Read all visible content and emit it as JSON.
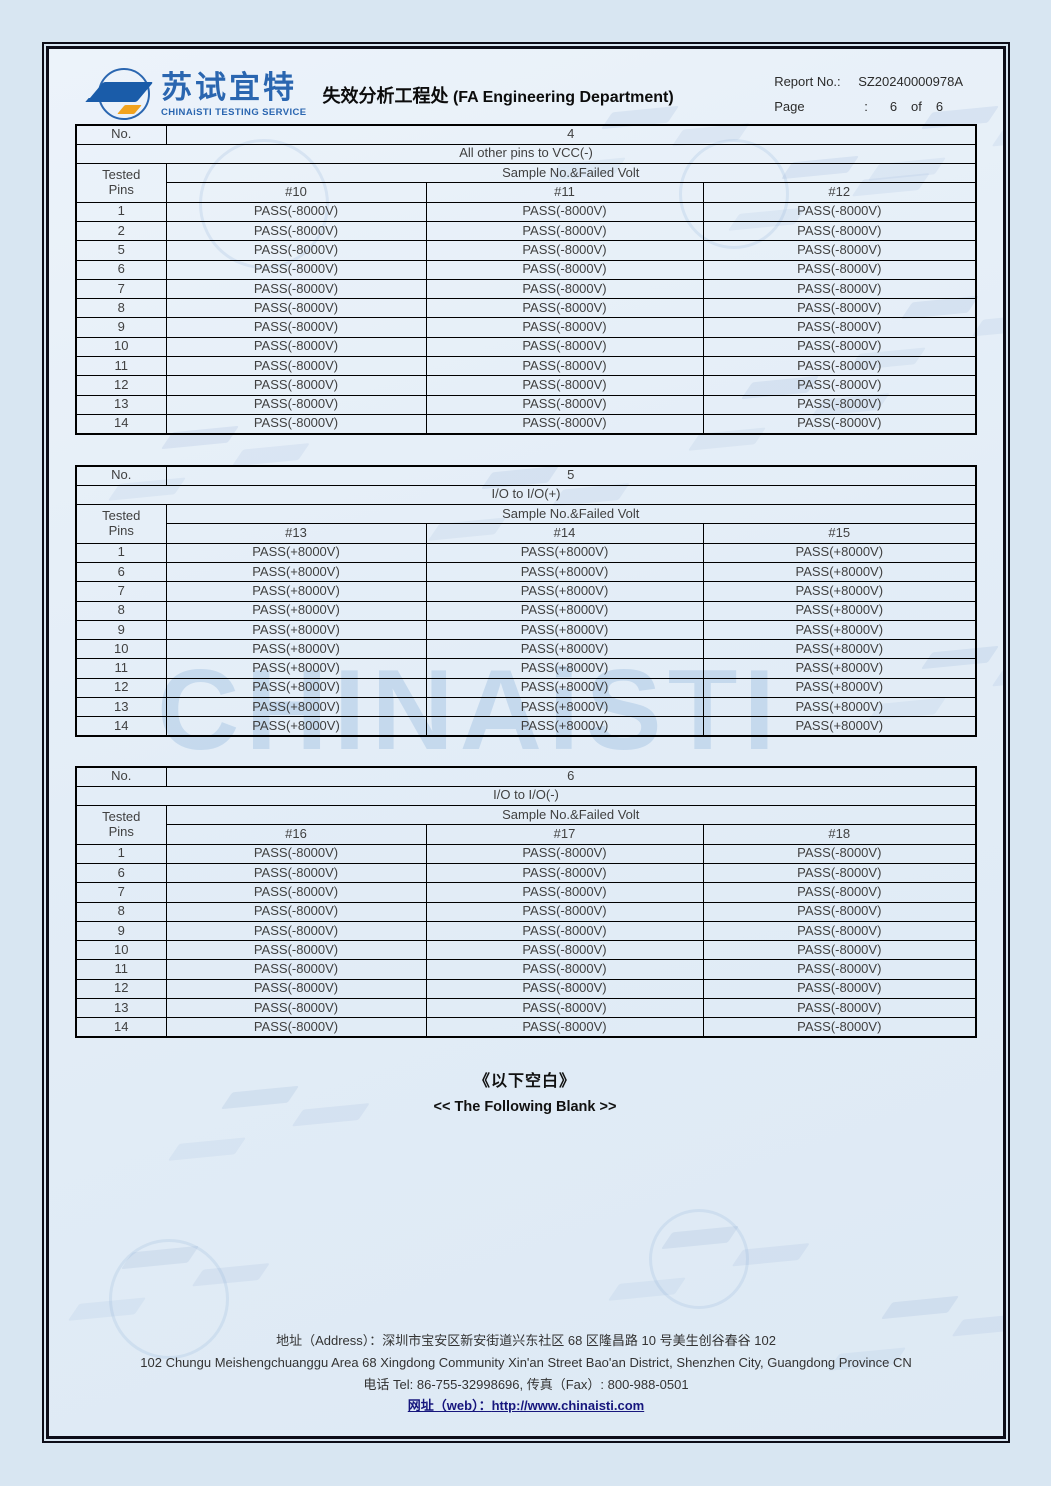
{
  "brand": {
    "logo_cn": "苏试宜特",
    "logo_en": "CHINAiSTI TESTING SERVICE",
    "dept_cn": "失效分析工程处",
    "dept_en": "(FA Engineering Department)"
  },
  "report": {
    "report_no_label": "Report No.:",
    "report_no": "SZ20240000978A",
    "page_label": "Page",
    "page_colon": ":",
    "page_no": "6",
    "of_label": "of",
    "page_total": "6"
  },
  "tables": [
    {
      "no_label": "No.",
      "no_value": "4",
      "condition": "All other pins to VCC(-)",
      "tested_pins_label": "Tested Pins",
      "sample_header": "Sample No.&Failed Volt",
      "columns": [
        "#10",
        "#11",
        "#12"
      ],
      "rows": [
        {
          "pin": "1",
          "values": [
            "PASS(-8000V)",
            "PASS(-8000V)",
            "PASS(-8000V)"
          ]
        },
        {
          "pin": "2",
          "values": [
            "PASS(-8000V)",
            "PASS(-8000V)",
            "PASS(-8000V)"
          ]
        },
        {
          "pin": "5",
          "values": [
            "PASS(-8000V)",
            "PASS(-8000V)",
            "PASS(-8000V)"
          ]
        },
        {
          "pin": "6",
          "values": [
            "PASS(-8000V)",
            "PASS(-8000V)",
            "PASS(-8000V)"
          ]
        },
        {
          "pin": "7",
          "values": [
            "PASS(-8000V)",
            "PASS(-8000V)",
            "PASS(-8000V)"
          ]
        },
        {
          "pin": "8",
          "values": [
            "PASS(-8000V)",
            "PASS(-8000V)",
            "PASS(-8000V)"
          ]
        },
        {
          "pin": "9",
          "values": [
            "PASS(-8000V)",
            "PASS(-8000V)",
            "PASS(-8000V)"
          ]
        },
        {
          "pin": "10",
          "values": [
            "PASS(-8000V)",
            "PASS(-8000V)",
            "PASS(-8000V)"
          ]
        },
        {
          "pin": "11",
          "values": [
            "PASS(-8000V)",
            "PASS(-8000V)",
            "PASS(-8000V)"
          ]
        },
        {
          "pin": "12",
          "values": [
            "PASS(-8000V)",
            "PASS(-8000V)",
            "PASS(-8000V)"
          ]
        },
        {
          "pin": "13",
          "values": [
            "PASS(-8000V)",
            "PASS(-8000V)",
            "PASS(-8000V)"
          ]
        },
        {
          "pin": "14",
          "values": [
            "PASS(-8000V)",
            "PASS(-8000V)",
            "PASS(-8000V)"
          ]
        }
      ]
    },
    {
      "no_label": "No.",
      "no_value": "5",
      "condition": "I/O to I/O(+)",
      "tested_pins_label": "Tested Pins",
      "sample_header": "Sample No.&Failed Volt",
      "columns": [
        "#13",
        "#14",
        "#15"
      ],
      "rows": [
        {
          "pin": "1",
          "values": [
            "PASS(+8000V)",
            "PASS(+8000V)",
            "PASS(+8000V)"
          ]
        },
        {
          "pin": "6",
          "values": [
            "PASS(+8000V)",
            "PASS(+8000V)",
            "PASS(+8000V)"
          ]
        },
        {
          "pin": "7",
          "values": [
            "PASS(+8000V)",
            "PASS(+8000V)",
            "PASS(+8000V)"
          ]
        },
        {
          "pin": "8",
          "values": [
            "PASS(+8000V)",
            "PASS(+8000V)",
            "PASS(+8000V)"
          ]
        },
        {
          "pin": "9",
          "values": [
            "PASS(+8000V)",
            "PASS(+8000V)",
            "PASS(+8000V)"
          ]
        },
        {
          "pin": "10",
          "values": [
            "PASS(+8000V)",
            "PASS(+8000V)",
            "PASS(+8000V)"
          ]
        },
        {
          "pin": "11",
          "values": [
            "PASS(+8000V)",
            "PASS(+8000V)",
            "PASS(+8000V)"
          ]
        },
        {
          "pin": "12",
          "values": [
            "PASS(+8000V)",
            "PASS(+8000V)",
            "PASS(+8000V)"
          ]
        },
        {
          "pin": "13",
          "values": [
            "PASS(+8000V)",
            "PASS(+8000V)",
            "PASS(+8000V)"
          ]
        },
        {
          "pin": "14",
          "values": [
            "PASS(+8000V)",
            "PASS(+8000V)",
            "PASS(+8000V)"
          ]
        }
      ]
    },
    {
      "no_label": "No.",
      "no_value": "6",
      "condition": "I/O to I/O(-)",
      "tested_pins_label": "Tested Pins",
      "sample_header": "Sample No.&Failed Volt",
      "columns": [
        "#16",
        "#17",
        "#18"
      ],
      "rows": [
        {
          "pin": "1",
          "values": [
            "PASS(-8000V)",
            "PASS(-8000V)",
            "PASS(-8000V)"
          ]
        },
        {
          "pin": "6",
          "values": [
            "PASS(-8000V)",
            "PASS(-8000V)",
            "PASS(-8000V)"
          ]
        },
        {
          "pin": "7",
          "values": [
            "PASS(-8000V)",
            "PASS(-8000V)",
            "PASS(-8000V)"
          ]
        },
        {
          "pin": "8",
          "values": [
            "PASS(-8000V)",
            "PASS(-8000V)",
            "PASS(-8000V)"
          ]
        },
        {
          "pin": "9",
          "values": [
            "PASS(-8000V)",
            "PASS(-8000V)",
            "PASS(-8000V)"
          ]
        },
        {
          "pin": "10",
          "values": [
            "PASS(-8000V)",
            "PASS(-8000V)",
            "PASS(-8000V)"
          ]
        },
        {
          "pin": "11",
          "values": [
            "PASS(-8000V)",
            "PASS(-8000V)",
            "PASS(-8000V)"
          ]
        },
        {
          "pin": "12",
          "values": [
            "PASS(-8000V)",
            "PASS(-8000V)",
            "PASS(-8000V)"
          ]
        },
        {
          "pin": "13",
          "values": [
            "PASS(-8000V)",
            "PASS(-8000V)",
            "PASS(-8000V)"
          ]
        },
        {
          "pin": "14",
          "values": [
            "PASS(-8000V)",
            "PASS(-8000V)",
            "PASS(-8000V)"
          ]
        }
      ]
    }
  ],
  "blank_note": {
    "cn": "《以下空白》",
    "en": "<< The Following Blank >>"
  },
  "footer": {
    "address_cn": "地址（Address）：深圳市宝安区新安街道兴东社区 68 区隆昌路 10 号美生创谷春谷 102",
    "address_en": "102 Chungu Meishengchuanggu Area 68 Xingdong Community Xin'an Street Bao'an District, Shenzhen City, Guangdong Province CN",
    "tel_fax": "电话 Tel: 86-755-32998696, 传真（Fax）: 800-988-0501",
    "web_label": "网址（web）：",
    "web_url": "http://www.chinaisti.com"
  },
  "watermark": {
    "text": "CHINAiSTI"
  },
  "colors": {
    "brand_blue": "#2a66b0",
    "brand_orange": "#f2a31d",
    "link_navy": "#16167d",
    "page_bg": "#d8e6f2"
  }
}
